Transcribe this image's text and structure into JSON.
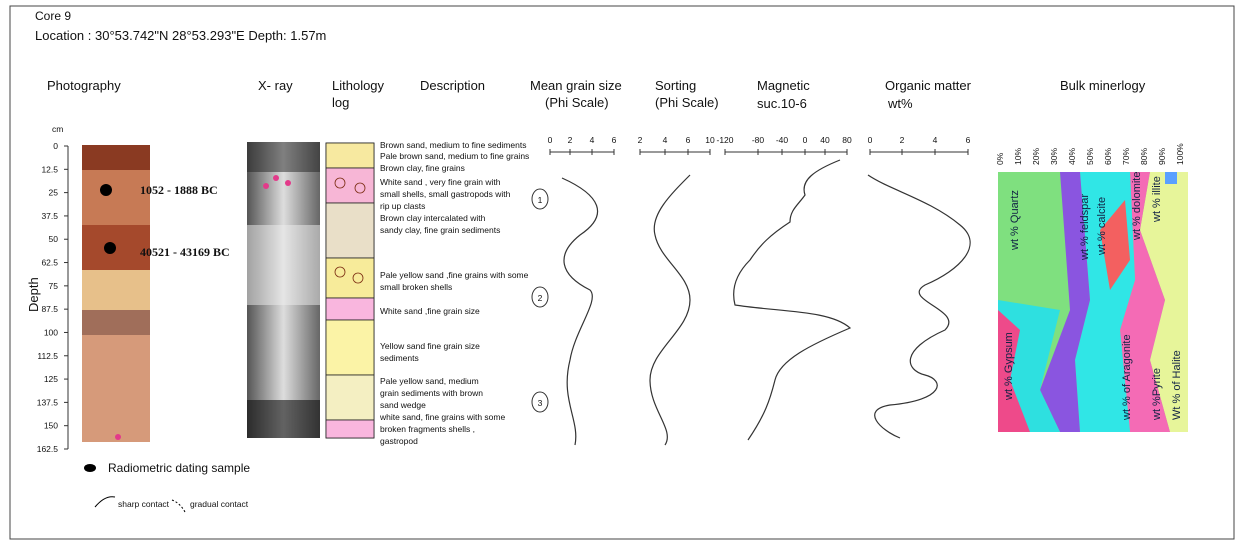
{
  "header": {
    "core": "Core 9",
    "location": "Location : 30°53.742\"N  28°53.293\"E Depth: 1.57m"
  },
  "columns": {
    "photography": "Photography",
    "xray": "X- ray",
    "lithology": [
      "Lithology",
      "log"
    ],
    "description": "Description",
    "mean_grain": [
      "Mean grain size",
      "(Phi Scale)"
    ],
    "sorting": [
      "Sorting",
      "(Phi Scale)"
    ],
    "magnetic": [
      "Magnetic",
      "suc.10-6"
    ],
    "organic": [
      "Organic matter",
      "wt%"
    ],
    "bulk": "Bulk minerlogy"
  },
  "depth_axis": {
    "unit": "cm",
    "label": "Depth",
    "ticks": [
      "0",
      "12.5",
      "25",
      "37.5",
      "50",
      "62.5",
      "75",
      "87.5",
      "100",
      "112.5",
      "125",
      "137.5",
      "150",
      "162.5"
    ]
  },
  "dates": [
    "1052 - 1888 BC",
    "40521 - 43169 BC"
  ],
  "descriptions": [
    "Brown sand, medium to fine sediments",
    "Pale brown sand, medium to fine grains",
    "Brown clay, fine grains",
    "White sand , very fine grain with",
    "small shells, small gastropods with",
    "rip up clasts",
    "Brown clay intercalated with",
    "sandy clay, fine grain sediments",
    "Pale yellow sand ,fine grains with some",
    "small broken shells",
    "White sand ,fine grain size",
    "Yellow sand fine grain size",
    "sediments",
    "Pale yellow sand, medium",
    "grain sediments with brown",
    "sand wedge",
    "white sand, fine grains with some",
    "broken fragments shells ,",
    "gastropod"
  ],
  "scales": {
    "mean_grain": [
      "0",
      "2",
      "4",
      "6"
    ],
    "sorting": [
      "2",
      "4",
      "6",
      "10"
    ],
    "magnetic": [
      "-120",
      "-80",
      "-40",
      "0",
      "40",
      "80"
    ],
    "organic": [
      "0",
      "2",
      "4",
      "6"
    ],
    "bulk": [
      "0%",
      "10%",
      "20%",
      "30%",
      "40%",
      "50%",
      "60%",
      "70%",
      "80%",
      "90%",
      "100%"
    ]
  },
  "units": [
    "1",
    "2",
    "3"
  ],
  "minerals": [
    "wt % Quartz",
    "wt % feldspar",
    "wt % calcite",
    "wt % dolomite",
    "wt % illite",
    "wt % Gypsum",
    "wt % of Aragonite",
    "wt %Pyrite",
    "Wt % of Halite"
  ],
  "legend": {
    "dating": "Radiometric dating sample",
    "sharp": "sharp contact",
    "gradual": "gradual contact"
  }
}
